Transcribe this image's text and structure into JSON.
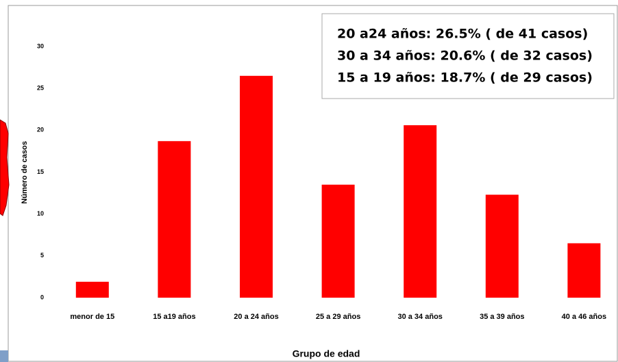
{
  "chart_data": {
    "type": "bar",
    "x_label": "Grupo de edad",
    "y_label": "Número de casos",
    "categories": [
      "menor de 15",
      "15 a19 años",
      "20 a 24 años",
      "25 a 29 años",
      "30 a 34 años",
      "35 a 39 años",
      "40 a 46 años"
    ],
    "values": [
      1.9,
      18.7,
      26.5,
      13.5,
      20.6,
      12.3,
      6.5
    ],
    "color": "#ff0000",
    "ylim": [
      0,
      30
    ],
    "yticks": [
      0,
      5,
      10,
      15,
      20,
      25,
      30
    ],
    "grid": false,
    "annotations": [
      "20 a24 años: 26.5% ( de 41 casos)",
      "30 a 34 años: 20.6% ( de 32 casos)",
      "15 a 19 años: 18.7% ( de 29 casos)"
    ]
  }
}
